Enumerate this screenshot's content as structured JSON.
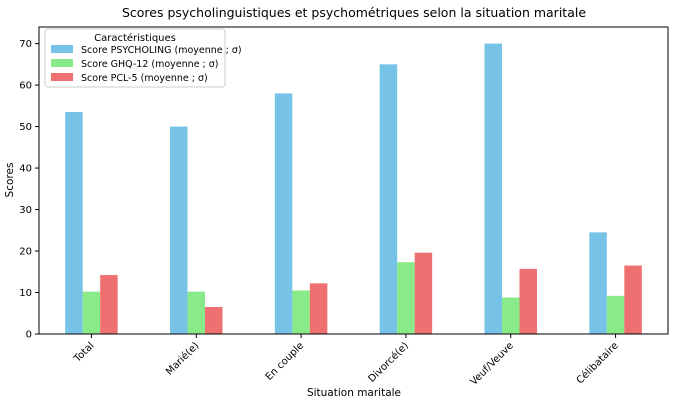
{
  "chart_data": {
    "type": "bar",
    "title": "Scores psycholinguistiques et psychométriques selon la situation maritale",
    "xlabel": "Situation maritale",
    "ylabel": "Scores",
    "categories": [
      "Total",
      "Marié(e)",
      "En couple",
      "Divorcé(e)",
      "Veuf/Veuve",
      "Célibataire"
    ],
    "series": [
      {
        "name": "Score PSYCHOLING (moyenne ; σ)",
        "color": "#77c3e8",
        "values": [
          53.5,
          50,
          58,
          65,
          70,
          24.5
        ]
      },
      {
        "name": "Score GHQ-12 (moyenne ; σ)",
        "color": "#88ea88",
        "values": [
          10.2,
          10.2,
          10.5,
          17.3,
          8.8,
          9.2
        ]
      },
      {
        "name": "Score PCL-5 (moyenne ; σ)",
        "color": "#ef7070",
        "values": [
          14.2,
          6.5,
          12.2,
          19.6,
          15.7,
          16.5
        ]
      }
    ],
    "ylim": [
      0,
      74
    ],
    "yticks": [
      0,
      10,
      20,
      30,
      40,
      50,
      60,
      70
    ],
    "legend": {
      "title": "Caractéristiques",
      "placement": "top-left"
    },
    "grid": false
  }
}
